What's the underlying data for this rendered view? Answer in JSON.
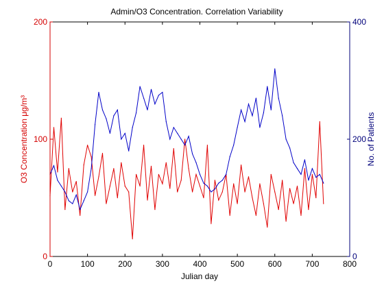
{
  "chart_data": {
    "type": "line",
    "title": "Admin/O3 Concentration. Correlation Variability",
    "xlabel": "Julian day",
    "xlim": [
      0,
      800
    ],
    "xticks": [
      "0",
      "100",
      "200",
      "300",
      "400",
      "500",
      "600",
      "700",
      "800"
    ],
    "y_left": {
      "label": "O3 Concentration μg/m³",
      "ylim": [
        0,
        200
      ],
      "ticks": [
        "0",
        "100",
        "200"
      ],
      "color": "#d40000"
    },
    "y_right": {
      "label": "No. of Patients",
      "ylim": [
        0,
        400
      ],
      "ticks": [
        "0",
        "200",
        "400"
      ],
      "color": "#00007a"
    },
    "grid": false,
    "series": [
      {
        "axis": "left",
        "color": "#e00000",
        "x": [
          0,
          10,
          20,
          30,
          40,
          50,
          60,
          70,
          80,
          90,
          100,
          110,
          120,
          130,
          140,
          150,
          160,
          170,
          180,
          190,
          200,
          210,
          220,
          230,
          240,
          250,
          260,
          270,
          280,
          290,
          300,
          310,
          320,
          330,
          340,
          350,
          360,
          370,
          380,
          390,
          400,
          410,
          420,
          430,
          440,
          450,
          460,
          470,
          480,
          490,
          500,
          510,
          520,
          530,
          540,
          550,
          560,
          570,
          580,
          590,
          600,
          610,
          620,
          630,
          640,
          650,
          660,
          670,
          680,
          690,
          700,
          710,
          720,
          730
        ],
        "values": [
          52,
          110,
          72,
          118,
          40,
          75,
          55,
          64,
          35,
          78,
          95,
          85,
          52,
          68,
          88,
          45,
          60,
          75,
          50,
          80,
          60,
          55,
          15,
          70,
          60,
          95,
          48,
          77,
          40,
          70,
          62,
          80,
          58,
          92,
          55,
          65,
          100,
          75,
          55,
          70,
          60,
          50,
          95,
          28,
          65,
          48,
          55,
          70,
          35,
          62,
          45,
          78,
          55,
          68,
          50,
          35,
          62,
          45,
          25,
          70,
          55,
          40,
          65,
          30,
          58,
          45,
          60,
          35,
          75,
          40,
          70,
          50,
          115,
          45
        ]
      },
      {
        "axis": "right",
        "color": "#0000c8",
        "x": [
          0,
          10,
          20,
          30,
          40,
          50,
          60,
          70,
          80,
          90,
          100,
          110,
          120,
          130,
          140,
          150,
          160,
          170,
          180,
          190,
          200,
          210,
          220,
          230,
          240,
          250,
          260,
          270,
          280,
          290,
          300,
          310,
          320,
          330,
          340,
          350,
          360,
          370,
          380,
          390,
          400,
          410,
          420,
          430,
          440,
          450,
          460,
          470,
          480,
          490,
          500,
          510,
          520,
          530,
          540,
          550,
          560,
          570,
          580,
          590,
          600,
          610,
          620,
          630,
          640,
          650,
          660,
          670,
          680,
          690,
          700,
          710,
          720,
          730
        ],
        "values": [
          140,
          155,
          130,
          120,
          110,
          95,
          90,
          105,
          80,
          95,
          110,
          150,
          225,
          280,
          250,
          235,
          210,
          240,
          250,
          200,
          210,
          180,
          220,
          245,
          290,
          270,
          250,
          285,
          260,
          275,
          280,
          230,
          200,
          220,
          210,
          200,
          190,
          205,
          175,
          160,
          140,
          125,
          120,
          110,
          115,
          125,
          130,
          140,
          170,
          190,
          220,
          250,
          230,
          260,
          240,
          270,
          220,
          245,
          290,
          250,
          320,
          270,
          240,
          200,
          185,
          160,
          150,
          140,
          165,
          130,
          150,
          135,
          140,
          125
        ]
      }
    ]
  }
}
